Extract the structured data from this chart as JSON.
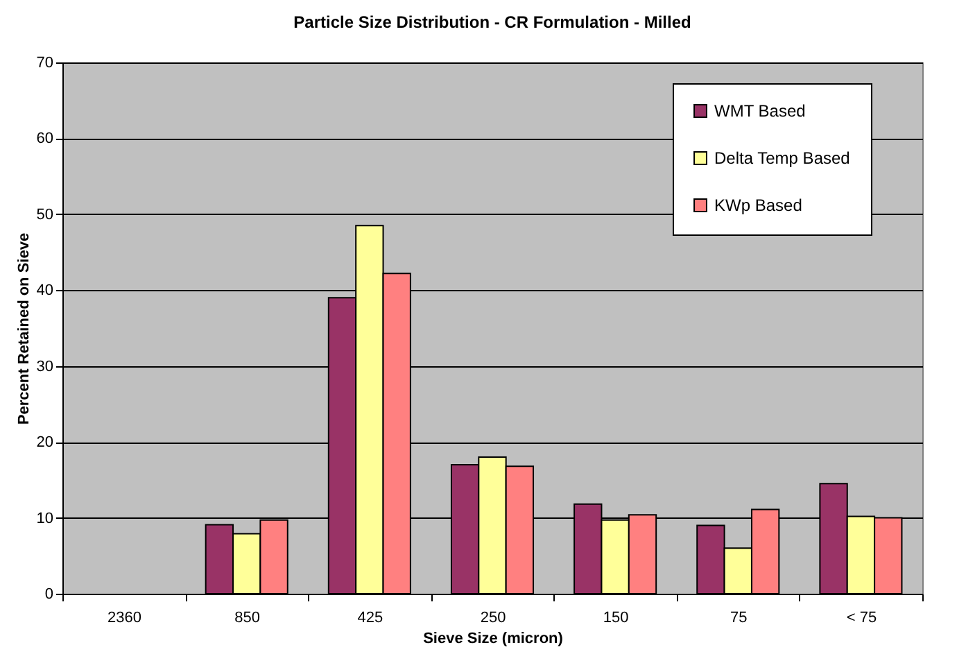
{
  "chart_data": {
    "type": "bar",
    "title": "Particle Size Distribution - CR Formulation - Milled",
    "xlabel": "Sieve Size (micron)",
    "ylabel": "Percent Retained on Sieve",
    "categories": [
      "2360",
      "850",
      "425",
      "250",
      "150",
      "75",
      "< 75"
    ],
    "series": [
      {
        "name": "WMT Based",
        "color": "#993366",
        "values": [
          null,
          9.1,
          39.0,
          17.0,
          11.8,
          9.0,
          14.5
        ]
      },
      {
        "name": "Delta Temp Based",
        "color": "#ffff99",
        "values": [
          null,
          7.9,
          48.5,
          18.0,
          9.7,
          6.0,
          10.2
        ]
      },
      {
        "name": "KWp Based",
        "color": "#ff8080",
        "values": [
          null,
          9.7,
          42.2,
          16.8,
          10.4,
          11.1,
          10.0
        ]
      }
    ],
    "ylim": [
      0,
      70
    ],
    "yticks": [
      0,
      10,
      20,
      30,
      40,
      50,
      60,
      70
    ],
    "grid": "y",
    "legend": "top right"
  }
}
